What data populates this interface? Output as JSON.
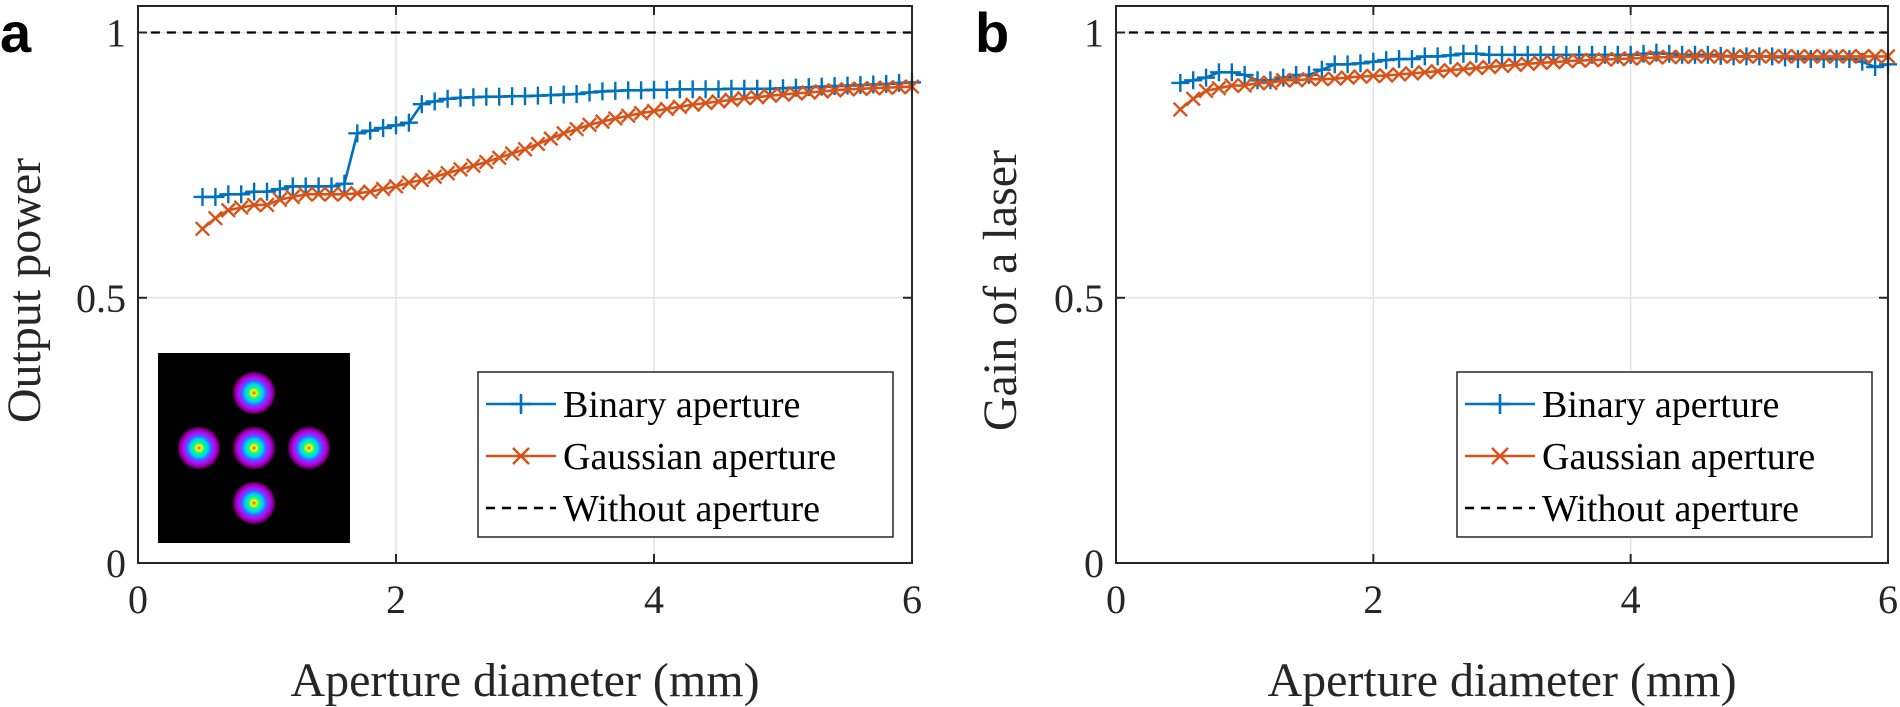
{
  "chart_data": [
    {
      "panel": "a",
      "type": "line",
      "xlabel": "Aperture diameter (mm)",
      "ylabel": "Output power",
      "xlim": [
        0,
        6
      ],
      "ylim": [
        0,
        1.05
      ],
      "xticks": [
        "0",
        "2",
        "4",
        "6"
      ],
      "yticks": [
        "0",
        "0.5",
        "1"
      ],
      "grid": true,
      "legend_position": "bottom-right",
      "inset": "four-beam-intensity-pattern",
      "series": [
        {
          "name": "Binary aperture",
          "marker": "+",
          "color": "#0072BD",
          "dashed": false,
          "x": [
            0.5,
            0.6,
            0.7,
            0.8,
            0.9,
            1.0,
            1.1,
            1.2,
            1.3,
            1.4,
            1.5,
            1.6,
            1.7,
            1.8,
            1.9,
            2.0,
            2.1,
            2.2,
            2.3,
            2.4,
            2.5,
            2.6,
            2.7,
            2.8,
            2.9,
            3.0,
            3.1,
            3.2,
            3.3,
            3.4,
            3.5,
            3.6,
            3.7,
            3.8,
            3.9,
            4.0,
            4.1,
            4.2,
            4.3,
            4.4,
            4.5,
            4.6,
            4.7,
            4.8,
            4.9,
            5.0,
            5.1,
            5.2,
            5.3,
            5.4,
            5.5,
            5.6,
            5.7,
            5.8,
            5.9,
            6.0
          ],
          "values": [
            0.69,
            0.69,
            0.695,
            0.695,
            0.7,
            0.7,
            0.705,
            0.71,
            0.71,
            0.71,
            0.71,
            0.715,
            0.81,
            0.815,
            0.82,
            0.825,
            0.83,
            0.865,
            0.87,
            0.875,
            0.877,
            0.878,
            0.879,
            0.879,
            0.88,
            0.88,
            0.881,
            0.882,
            0.883,
            0.884,
            0.887,
            0.889,
            0.89,
            0.891,
            0.891,
            0.892,
            0.892,
            0.893,
            0.893,
            0.893,
            0.893,
            0.894,
            0.894,
            0.894,
            0.894,
            0.895,
            0.896,
            0.897,
            0.898,
            0.899,
            0.9,
            0.901,
            0.902,
            0.903,
            0.905,
            0.906
          ]
        },
        {
          "name": "Gaussian aperture",
          "marker": "x",
          "color": "#D95319",
          "dashed": false,
          "x": [
            0.5,
            0.6,
            0.7,
            0.8,
            0.9,
            1.0,
            1.1,
            1.2,
            1.3,
            1.4,
            1.5,
            1.6,
            1.7,
            1.8,
            1.9,
            2.0,
            2.1,
            2.2,
            2.3,
            2.4,
            2.5,
            2.6,
            2.7,
            2.8,
            2.9,
            3.0,
            3.1,
            3.2,
            3.3,
            3.4,
            3.5,
            3.6,
            3.7,
            3.8,
            3.9,
            4.0,
            4.1,
            4.2,
            4.3,
            4.4,
            4.5,
            4.6,
            4.7,
            4.8,
            4.9,
            5.0,
            5.1,
            5.2,
            5.3,
            5.4,
            5.5,
            5.6,
            5.7,
            5.8,
            5.9,
            6.0
          ],
          "values": [
            0.63,
            0.65,
            0.665,
            0.67,
            0.675,
            0.675,
            0.685,
            0.69,
            0.695,
            0.695,
            0.695,
            0.695,
            0.697,
            0.7,
            0.705,
            0.71,
            0.717,
            0.722,
            0.728,
            0.735,
            0.742,
            0.749,
            0.756,
            0.764,
            0.772,
            0.78,
            0.79,
            0.8,
            0.81,
            0.818,
            0.826,
            0.832,
            0.838,
            0.843,
            0.848,
            0.852,
            0.856,
            0.86,
            0.864,
            0.867,
            0.87,
            0.873,
            0.876,
            0.878,
            0.881,
            0.883,
            0.885,
            0.887,
            0.889,
            0.891,
            0.893,
            0.894,
            0.895,
            0.896,
            0.897,
            0.898
          ]
        },
        {
          "name": "Without aperture",
          "marker": "none",
          "color": "#000000",
          "dashed": true,
          "x": [
            0.1,
            6.0
          ],
          "values": [
            1.0,
            1.0
          ]
        }
      ]
    },
    {
      "panel": "b",
      "type": "line",
      "xlabel": "Aperture diameter (mm)",
      "ylabel": "Gain of a laser",
      "xlim": [
        0,
        6
      ],
      "ylim": [
        0,
        1.05
      ],
      "xticks": [
        "0",
        "2",
        "4",
        "6"
      ],
      "yticks": [
        "0",
        "0.5",
        "1"
      ],
      "grid": true,
      "legend_position": "bottom-right",
      "series": [
        {
          "name": "Binary aperture",
          "marker": "+",
          "color": "#0072BD",
          "dashed": false,
          "x": [
            0.5,
            0.6,
            0.7,
            0.8,
            0.9,
            1.0,
            1.1,
            1.2,
            1.3,
            1.4,
            1.5,
            1.6,
            1.7,
            1.8,
            1.9,
            2.0,
            2.1,
            2.2,
            2.3,
            2.4,
            2.5,
            2.6,
            2.7,
            2.8,
            2.9,
            3.0,
            3.1,
            3.2,
            3.3,
            3.4,
            3.5,
            3.6,
            3.7,
            3.8,
            3.9,
            4.0,
            4.1,
            4.2,
            4.3,
            4.4,
            4.5,
            4.6,
            4.7,
            4.8,
            4.9,
            5.0,
            5.1,
            5.2,
            5.3,
            5.4,
            5.5,
            5.6,
            5.7,
            5.8,
            5.9,
            6.0
          ],
          "values": [
            0.905,
            0.91,
            0.915,
            0.925,
            0.925,
            0.92,
            0.91,
            0.91,
            0.915,
            0.92,
            0.92,
            0.93,
            0.94,
            0.94,
            0.942,
            0.945,
            0.948,
            0.95,
            0.95,
            0.955,
            0.955,
            0.957,
            0.96,
            0.96,
            0.958,
            0.958,
            0.958,
            0.958,
            0.958,
            0.958,
            0.958,
            0.958,
            0.958,
            0.958,
            0.958,
            0.958,
            0.96,
            0.962,
            0.96,
            0.958,
            0.958,
            0.958,
            0.956,
            0.955,
            0.955,
            0.955,
            0.955,
            0.953,
            0.95,
            0.95,
            0.95,
            0.95,
            0.95,
            0.945,
            0.935,
            0.94
          ]
        },
        {
          "name": "Gaussian aperture",
          "marker": "x",
          "color": "#D95319",
          "dashed": false,
          "x": [
            0.5,
            0.6,
            0.7,
            0.8,
            0.9,
            1.0,
            1.1,
            1.2,
            1.3,
            1.4,
            1.5,
            1.6,
            1.7,
            1.8,
            1.9,
            2.0,
            2.1,
            2.2,
            2.3,
            2.4,
            2.5,
            2.6,
            2.7,
            2.8,
            2.9,
            3.0,
            3.1,
            3.2,
            3.3,
            3.4,
            3.5,
            3.6,
            3.7,
            3.8,
            3.9,
            4.0,
            4.1,
            4.2,
            4.3,
            4.4,
            4.5,
            4.6,
            4.7,
            4.8,
            4.9,
            5.0,
            5.1,
            5.2,
            5.3,
            5.4,
            5.5,
            5.6,
            5.7,
            5.8,
            5.9,
            6.0
          ],
          "values": [
            0.855,
            0.875,
            0.89,
            0.895,
            0.9,
            0.9,
            0.905,
            0.905,
            0.91,
            0.91,
            0.912,
            0.912,
            0.913,
            0.915,
            0.917,
            0.918,
            0.919,
            0.921,
            0.923,
            0.925,
            0.927,
            0.929,
            0.931,
            0.933,
            0.935,
            0.937,
            0.939,
            0.941,
            0.943,
            0.944,
            0.946,
            0.947,
            0.948,
            0.949,
            0.95,
            0.951,
            0.952,
            0.953,
            0.954,
            0.954,
            0.955,
            0.955,
            0.955,
            0.955,
            0.955,
            0.955,
            0.955,
            0.955,
            0.955,
            0.955,
            0.955,
            0.955,
            0.955,
            0.955,
            0.955,
            0.955
          ]
        },
        {
          "name": "Without aperture",
          "marker": "none",
          "color": "#000000",
          "dashed": true,
          "x": [
            0.1,
            6.0
          ],
          "values": [
            1.0,
            1.0
          ]
        }
      ]
    }
  ]
}
